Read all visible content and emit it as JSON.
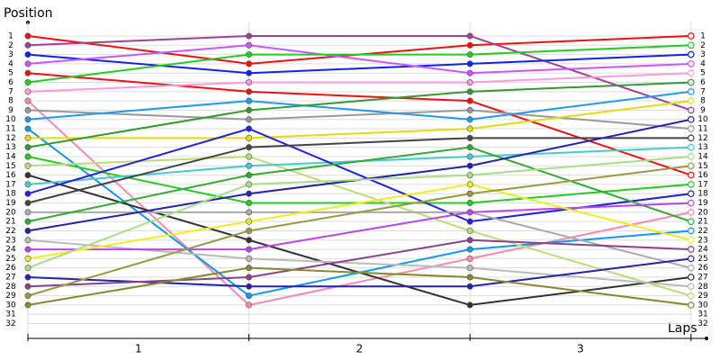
{
  "chart_data": {
    "type": "line",
    "y_label": "Position",
    "x_label": "Laps",
    "categories": [
      "1",
      "2",
      "3"
    ],
    "x": [
      0,
      1,
      2,
      3
    ],
    "xlim": [
      0,
      3.07
    ],
    "ylim": [
      -0.5,
      33.5
    ],
    "yticks": [
      1,
      2,
      3,
      4,
      5,
      6,
      7,
      8,
      9,
      10,
      11,
      12,
      13,
      14,
      15,
      16,
      17,
      18,
      19,
      20,
      21,
      22,
      23,
      24,
      25,
      26,
      27,
      28,
      29,
      30,
      31,
      32
    ],
    "grid": true,
    "series": [
      {
        "color": "#ee1111",
        "values": [
          1,
          4,
          2,
          1
        ]
      },
      {
        "color": "#994499",
        "values": [
          2,
          1,
          1,
          9
        ]
      },
      {
        "color": "#1122ee",
        "values": [
          3,
          5,
          4,
          3
        ]
      },
      {
        "color": "#cc55ff",
        "values": [
          4,
          2,
          5,
          4
        ]
      },
      {
        "color": "#ee1111",
        "values": [
          5,
          7,
          8,
          16
        ]
      },
      {
        "color": "#22cc22",
        "values": [
          6,
          3,
          3,
          2
        ]
      },
      {
        "color": "#ff99dd",
        "values": [
          7,
          6,
          6,
          5
        ]
      },
      {
        "color": "#ff88aa",
        "values": [
          8,
          30,
          25,
          20
        ]
      },
      {
        "color": "#999999",
        "values": [
          9,
          10,
          9,
          11
        ]
      },
      {
        "color": "#2299ee",
        "values": [
          10,
          8,
          10,
          7
        ]
      },
      {
        "color": "#1199ee",
        "values": [
          11,
          29,
          24,
          22
        ]
      },
      {
        "color": "#dddd11",
        "values": [
          12,
          12,
          11,
          8
        ]
      },
      {
        "color": "#339933",
        "values": [
          13,
          9,
          7,
          6
        ]
      },
      {
        "color": "#22cc22",
        "values": [
          14,
          19,
          19,
          17
        ]
      },
      {
        "color": "#bbdd77",
        "values": [
          15,
          14,
          22,
          29
        ]
      },
      {
        "color": "#333333",
        "values": [
          16,
          23,
          30,
          27
        ]
      },
      {
        "color": "#44cccc",
        "values": [
          17,
          15,
          14,
          13
        ]
      },
      {
        "color": "#2222dd",
        "values": [
          18,
          11,
          21,
          18
        ]
      },
      {
        "color": "#444444",
        "values": [
          19,
          13,
          12,
          12
        ]
      },
      {
        "color": "#aaaaaa",
        "values": [
          20,
          20,
          20,
          26
        ]
      },
      {
        "color": "#33aa33",
        "values": [
          21,
          16,
          13,
          21
        ]
      },
      {
        "color": "#2222aa",
        "values": [
          22,
          18,
          15,
          10
        ]
      },
      {
        "color": "#bbbbbb",
        "values": [
          23,
          25,
          26,
          28
        ]
      },
      {
        "color": "#bb44ee",
        "values": [
          24,
          24,
          20,
          19
        ]
      },
      {
        "color": "#eeee22",
        "values": [
          25,
          21,
          17,
          23
        ]
      },
      {
        "color": "#aadd88",
        "values": [
          26,
          17,
          16,
          14
        ]
      },
      {
        "color": "#2222aa",
        "values": [
          27,
          28,
          28,
          25
        ]
      },
      {
        "color": "#884488",
        "values": [
          28,
          27,
          23,
          24
        ]
      },
      {
        "color": "#999944",
        "values": [
          29,
          22,
          18,
          15
        ]
      },
      {
        "color": "#888833",
        "values": [
          30,
          26,
          27,
          30
        ]
      }
    ]
  }
}
